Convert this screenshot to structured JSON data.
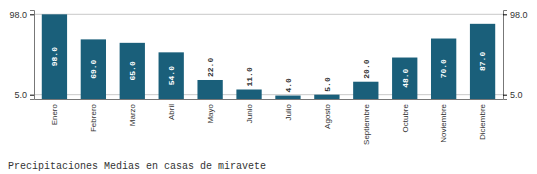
{
  "chart_data": {
    "type": "bar",
    "title": "Precipitaciones Medias en casas de miravete",
    "categories": [
      "Enero",
      "Febrero",
      "Marzo",
      "Abril",
      "Mayo",
      "Junio",
      "Julio",
      "Agosto",
      "Septiembre",
      "Octubre",
      "Noviembre",
      "Diciembre"
    ],
    "values": [
      98.0,
      69.0,
      65.0,
      54.0,
      22.0,
      11.0,
      4.0,
      5.0,
      20.0,
      48.0,
      70.0,
      87.0
    ],
    "value_labels": [
      "98.0",
      "69.0",
      "65.0",
      "54.0",
      "22.0",
      "11.0",
      "4.0",
      "5.0",
      "20.0",
      "48.0",
      "70.0",
      "87.0"
    ],
    "color": "#1a5f7a",
    "ylim": [
      0,
      103
    ],
    "yticks": [
      {
        "value": 5,
        "label": "5.0"
      },
      {
        "value": 98,
        "label": "98.0"
      }
    ],
    "grid": true,
    "data_labels": true
  }
}
